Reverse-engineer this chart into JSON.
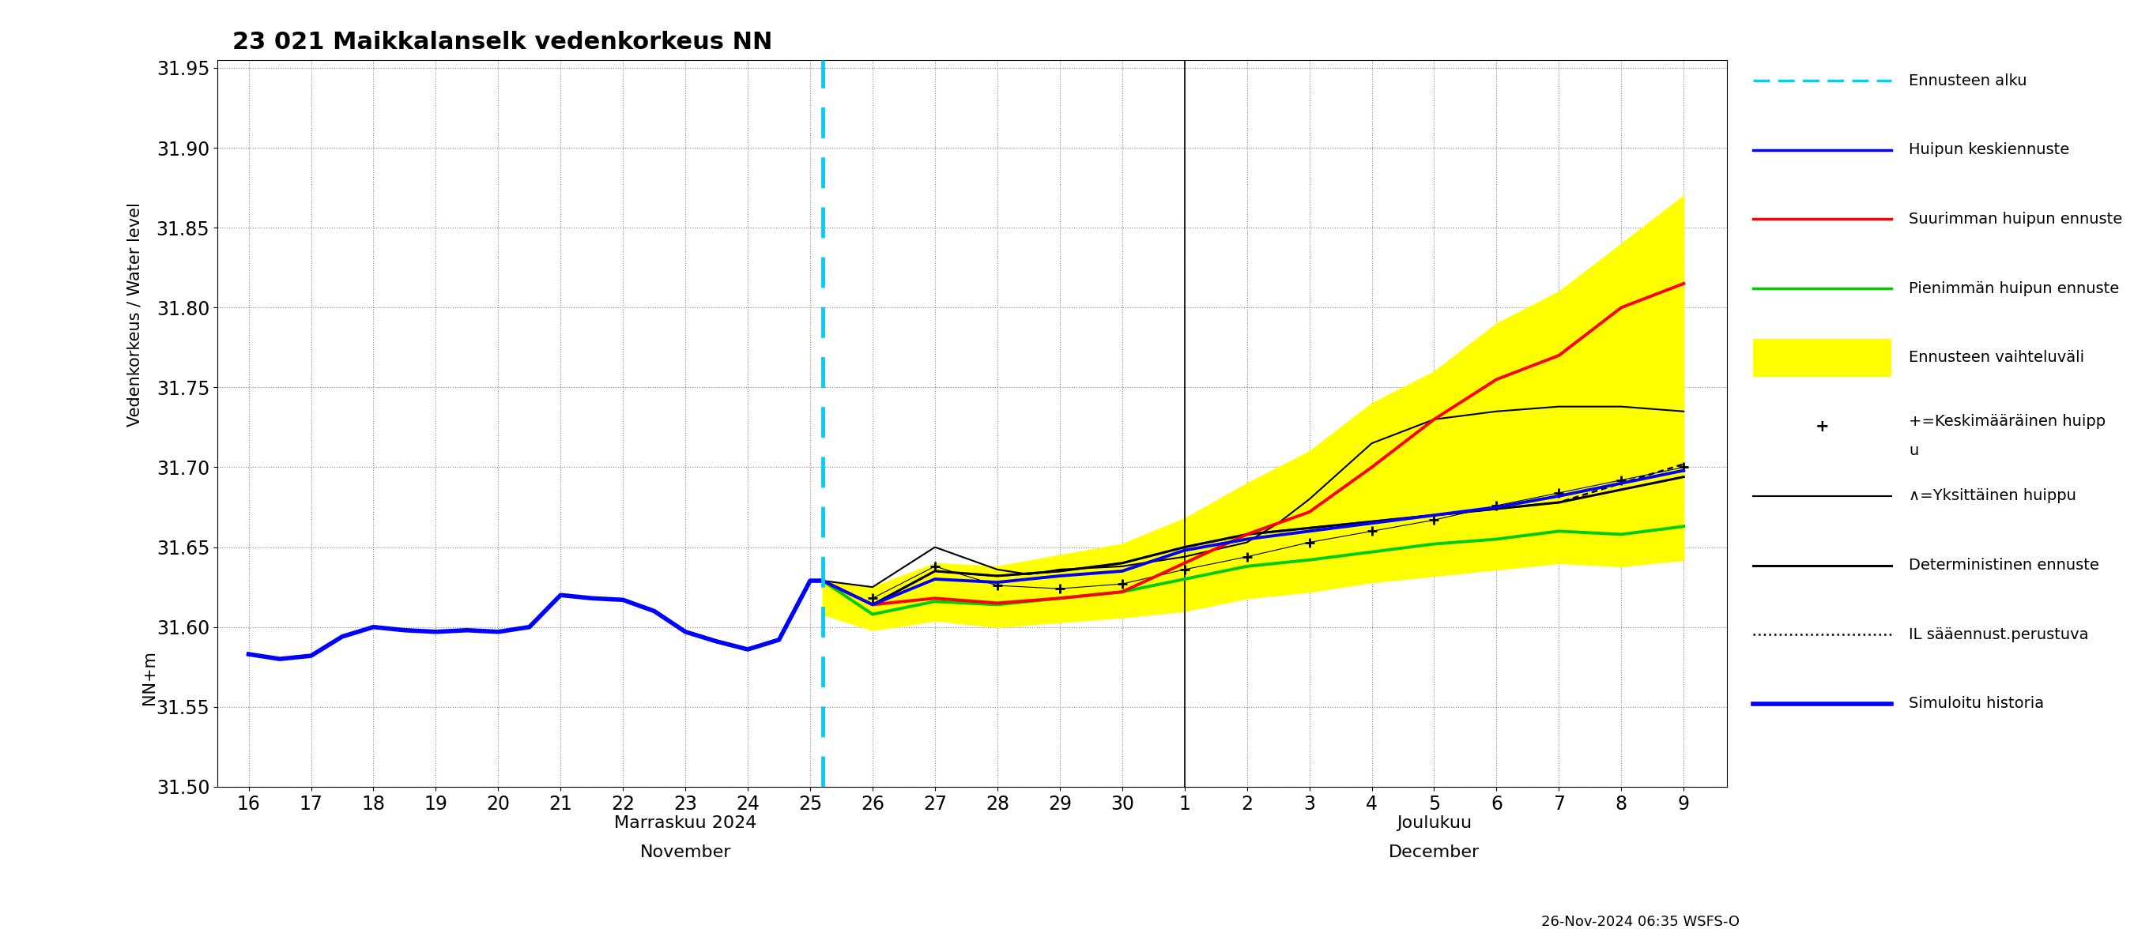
{
  "title": "23 021 Maikkalanselk vedenkorkeus NN",
  "footnote": "26-Nov-2024 06:35 WSFS-O",
  "ylim": [
    31.5,
    31.955
  ],
  "yticks": [
    31.5,
    31.55,
    31.6,
    31.65,
    31.7,
    31.75,
    31.8,
    31.85,
    31.9,
    31.95
  ],
  "history_y": [
    31.583,
    31.58,
    31.582,
    31.594,
    31.6,
    31.598,
    31.597,
    31.598,
    31.597,
    31.6,
    31.62,
    31.618,
    31.617,
    31.61,
    31.597,
    31.591,
    31.586,
    31.592,
    31.629,
    31.629
  ],
  "history_x_days": [
    0,
    0.5,
    1,
    1.5,
    2,
    2.5,
    3,
    3.5,
    4,
    4.5,
    5,
    5.5,
    6,
    6.5,
    7,
    7.5,
    8,
    8.5,
    9,
    9.2
  ],
  "fc_x_days": [
    9.2,
    10,
    11,
    12,
    13,
    14,
    15,
    16,
    17,
    18,
    19,
    20,
    21,
    22,
    23
  ],
  "mean_peak_y": [
    31.629,
    31.614,
    31.63,
    31.628,
    31.632,
    31.635,
    31.648,
    31.655,
    31.66,
    31.665,
    31.67,
    31.675,
    31.682,
    31.69,
    31.698
  ],
  "max_peak_y": [
    31.629,
    31.614,
    31.618,
    31.615,
    31.618,
    31.622,
    31.64,
    31.658,
    31.672,
    31.7,
    31.73,
    31.755,
    31.77,
    31.8,
    31.815
  ],
  "min_peak_y": [
    31.629,
    31.608,
    31.616,
    31.614,
    31.618,
    31.622,
    31.63,
    31.638,
    31.642,
    31.647,
    31.652,
    31.655,
    31.66,
    31.658,
    31.663
  ],
  "band_upper_y": [
    31.629,
    31.625,
    31.64,
    31.638,
    31.645,
    31.652,
    31.668,
    31.69,
    31.71,
    31.74,
    31.76,
    31.79,
    31.81,
    31.84,
    31.87
  ],
  "band_lower_y": [
    31.608,
    31.598,
    31.604,
    31.6,
    31.603,
    31.606,
    31.61,
    31.618,
    31.622,
    31.628,
    31.632,
    31.636,
    31.64,
    31.638,
    31.642
  ],
  "determ_y": [
    31.629,
    31.614,
    31.635,
    31.632,
    31.635,
    31.64,
    31.65,
    31.658,
    31.662,
    31.666,
    31.67,
    31.674,
    31.678,
    31.686,
    31.694
  ],
  "il_y": [
    31.629,
    31.614,
    31.635,
    31.632,
    31.635,
    31.64,
    31.65,
    31.658,
    31.662,
    31.666,
    31.67,
    31.674,
    31.678,
    31.69,
    31.702
  ],
  "indiv_x_days": [
    9.2,
    10,
    11,
    12,
    12.5,
    13,
    14,
    15,
    16,
    16.5,
    17,
    18,
    19,
    20,
    21,
    22,
    23
  ],
  "indiv_peak_y": [
    31.629,
    31.625,
    31.65,
    31.636,
    31.633,
    31.636,
    31.638,
    31.644,
    31.653,
    31.665,
    31.68,
    31.715,
    31.73,
    31.735,
    31.738,
    31.738,
    31.735
  ],
  "center_x_days": [
    10,
    11,
    12,
    13,
    14,
    15,
    16,
    17,
    18,
    19,
    20,
    21,
    22,
    23
  ],
  "center_peak_y": [
    31.618,
    31.638,
    31.626,
    31.624,
    31.627,
    31.636,
    31.644,
    31.653,
    31.66,
    31.667,
    31.676,
    31.684,
    31.692,
    31.7
  ],
  "colors": {
    "history": "#0000ff",
    "mean_peak": "#0000ff",
    "max_peak": "#ff0000",
    "min_peak": "#00cc00",
    "band": "#ffff00",
    "determ": "#000000",
    "il": "#000000",
    "forecast_vline": "#00ccff",
    "indiv_peak": "#000000",
    "center_peak": "#000000"
  }
}
